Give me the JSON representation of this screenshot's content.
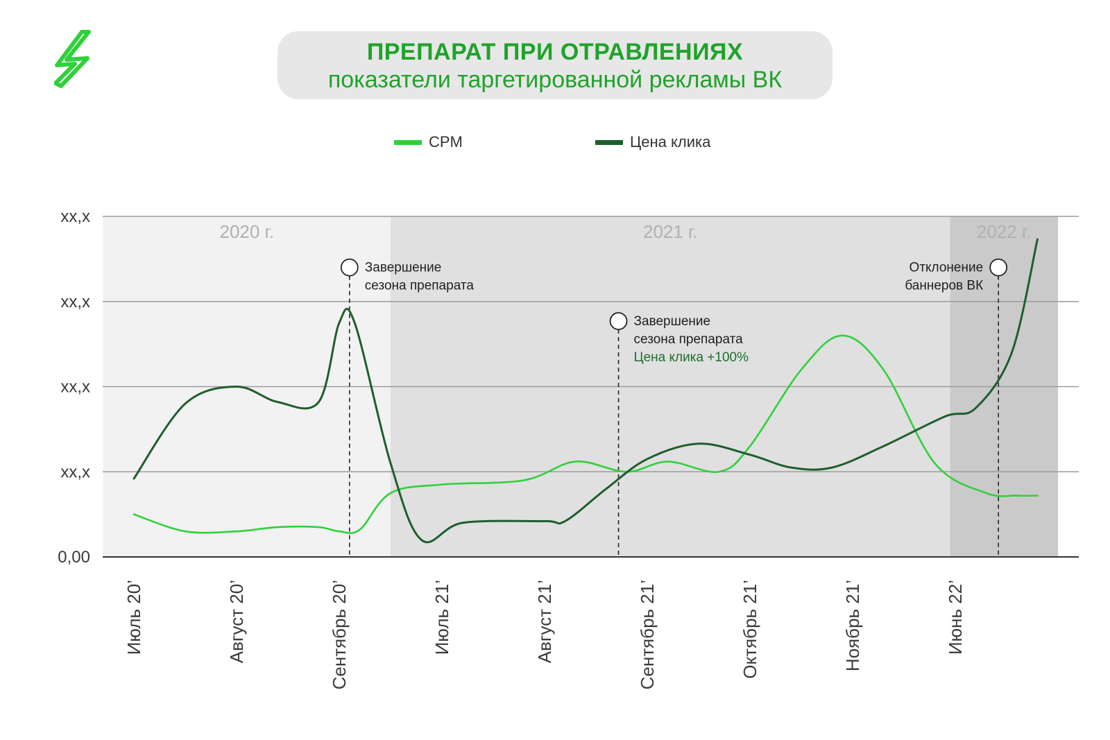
{
  "header": {
    "title": "ПРЕПАРАТ ПРИ ОТРАВЛЕНИЯХ",
    "subtitle": "показатели таргетированной рекламы ВК"
  },
  "colors": {
    "title": "#1fa32a",
    "cpm": "#2fd13a",
    "cpc": "#1e5e2c",
    "period_light": "#f2f2f2",
    "period_mid": "#e0e0e0",
    "period_dark": "#cacaca",
    "logo": "#2fd13a"
  },
  "logo": {
    "icon": "lightning-icon"
  },
  "chart_data": {
    "type": "line",
    "categories": [
      "Июль 20’",
      "Август 20’",
      "Сентябрь 20’",
      "Июль 21’",
      "Август 21’",
      "Сентябрь 21’",
      "Октябрь 21’",
      "Ноябрь 21’",
      "Июнь 22’"
    ],
    "y_tick_labels": [
      "0,00",
      "xx,x",
      "xx,x",
      "xx,x",
      "xx,x"
    ],
    "ylim": [
      0,
      4
    ],
    "grid": true,
    "legend_position": "top-center",
    "series": [
      {
        "name": "CPM",
        "color": "#2fd13a",
        "points": [
          [
            0,
            0.5
          ],
          [
            0.5,
            0.3
          ],
          [
            1,
            0.3
          ],
          [
            1.4,
            0.35
          ],
          [
            1.8,
            0.35
          ],
          [
            2.0,
            0.3
          ],
          [
            2.2,
            0.32
          ],
          [
            2.5,
            0.75
          ],
          [
            3,
            0.85
          ],
          [
            3.8,
            0.9
          ],
          [
            4.3,
            1.12
          ],
          [
            4.8,
            1.0
          ],
          [
            5.2,
            1.12
          ],
          [
            5.7,
            1.0
          ],
          [
            6.0,
            1.3
          ],
          [
            6.5,
            2.2
          ],
          [
            6.9,
            2.6
          ],
          [
            7.3,
            2.2
          ],
          [
            7.8,
            1.1
          ],
          [
            8.3,
            0.75
          ],
          [
            8.6,
            0.72
          ],
          [
            8.8,
            0.72
          ]
        ]
      },
      {
        "name": "Цена клика",
        "color": "#1e5e2c",
        "points": [
          [
            0,
            0.92
          ],
          [
            0.5,
            1.8
          ],
          [
            1,
            2.0
          ],
          [
            1.4,
            1.82
          ],
          [
            1.8,
            1.82
          ],
          [
            2.0,
            2.75
          ],
          [
            2.15,
            2.75
          ],
          [
            2.5,
            1.1
          ],
          [
            2.8,
            0.2
          ],
          [
            3.2,
            0.4
          ],
          [
            4.0,
            0.42
          ],
          [
            4.2,
            0.42
          ],
          [
            4.6,
            0.8
          ],
          [
            5.0,
            1.15
          ],
          [
            5.5,
            1.33
          ],
          [
            6.0,
            1.2
          ],
          [
            6.4,
            1.05
          ],
          [
            6.8,
            1.05
          ],
          [
            7.3,
            1.3
          ],
          [
            7.9,
            1.65
          ],
          [
            8.2,
            1.75
          ],
          [
            8.55,
            2.4
          ],
          [
            8.8,
            3.73
          ]
        ]
      }
    ],
    "periods": [
      {
        "label": "2020 г.",
        "from": -0.3,
        "to": 2.5,
        "color": "#f2f2f2"
      },
      {
        "label": "2021 г.",
        "from": 2.5,
        "to": 7.95,
        "color": "#e0e0e0"
      },
      {
        "label": "2022 г.",
        "from": 7.95,
        "to": 9.0,
        "color": "#cacaca"
      }
    ],
    "annotations": [
      {
        "x": 2.1,
        "y": 3.4,
        "lines": [
          "Завершение",
          "сезона препарата"
        ],
        "highlight": "",
        "side": "right"
      },
      {
        "x": 4.72,
        "y": 2.77,
        "lines": [
          "Завершение",
          "сезона препарата"
        ],
        "highlight": "Цена клика +100%",
        "side": "right"
      },
      {
        "x": 8.42,
        "y": 3.4,
        "lines": [
          "Отклонение",
          "баннеров ВК"
        ],
        "highlight": "",
        "side": "left"
      }
    ]
  }
}
